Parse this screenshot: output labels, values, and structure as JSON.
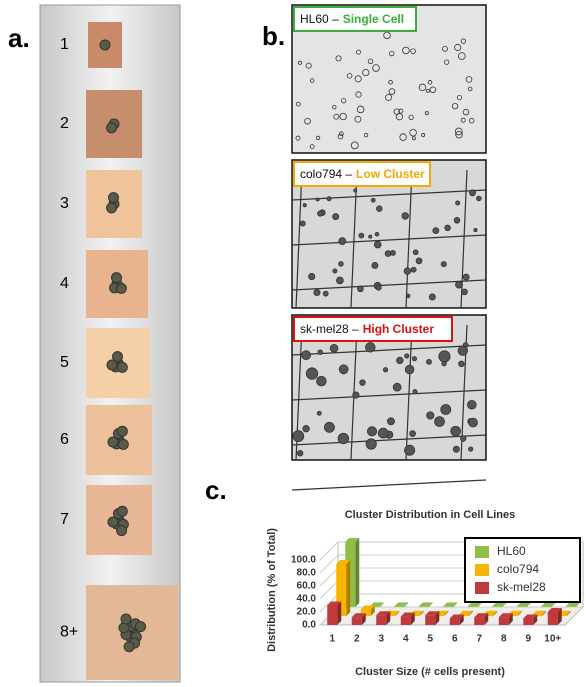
{
  "panel_labels": [
    "a.",
    "b.",
    "c."
  ],
  "panel_a": {
    "items": [
      "1",
      "2",
      "3",
      "4",
      "5",
      "6",
      "7",
      "8+"
    ]
  },
  "panel_b": {
    "images": [
      {
        "cell_line": "HL60 –",
        "cluster": "Single Cell",
        "color": "#3cae3c"
      },
      {
        "cell_line": "colo794 –",
        "cluster": "Low Cluster",
        "color": "#f5a800"
      },
      {
        "cell_line": "sk-mel28 –",
        "cluster": "High Cluster",
        "color": "#e01010"
      }
    ]
  },
  "chart_data": {
    "type": "bar3d",
    "title": "Cluster Distribution in Cell Lines",
    "x_label": "Cluster Size (# cells present)",
    "y_label": "Distribution (% of Total)",
    "categories": [
      "1",
      "2",
      "3",
      "4",
      "5",
      "6",
      "7",
      "8",
      "9",
      "10+"
    ],
    "series": [
      {
        "name": "HL60",
        "color": "#8fbf4a",
        "values": [
          100,
          1,
          1,
          1,
          1,
          1,
          1,
          1,
          1,
          1
        ]
      },
      {
        "name": "colo794",
        "color": "#f7b500",
        "values": [
          80,
          10,
          2,
          2,
          2,
          2,
          2,
          2,
          2,
          2
        ]
      },
      {
        "name": "sk-mel28",
        "color": "#c0393b",
        "values": [
          30,
          12,
          15,
          13,
          15,
          10,
          12,
          12,
          10,
          20
        ]
      }
    ],
    "ylim": [
      0,
      100
    ],
    "yticks": [
      {
        "value": 0,
        "label": "0.0"
      },
      {
        "value": 20,
        "label": "20.0"
      },
      {
        "value": 40,
        "label": "40.0"
      },
      {
        "value": 60,
        "label": "60.0"
      },
      {
        "value": 80,
        "label": "80.0"
      },
      {
        "value": 100,
        "label": "100.0"
      }
    ],
    "grid": true,
    "legend": "upper right"
  }
}
